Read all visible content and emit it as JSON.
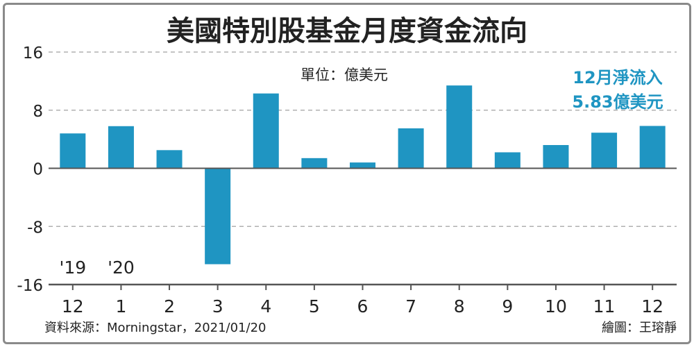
{
  "chart_data": {
    "type": "bar",
    "title": "美國特別股基金月度資金流向",
    "unit_label": "單位：億美元",
    "annotation": [
      "12月淨流入",
      "5.83億美元"
    ],
    "categories": [
      "12",
      "1",
      "2",
      "3",
      "4",
      "5",
      "6",
      "7",
      "8",
      "9",
      "10",
      "11",
      "12"
    ],
    "year_markers": [
      {
        "category_index": 0,
        "label": "'19"
      },
      {
        "category_index": 1,
        "label": "'20"
      }
    ],
    "values": [
      4.8,
      5.8,
      2.5,
      -13.2,
      10.3,
      1.4,
      0.8,
      5.5,
      11.4,
      2.2,
      3.2,
      4.9,
      5.83
    ],
    "ylim": [
      -16,
      16
    ],
    "yticks": [
      "16",
      "8",
      "0",
      "-8",
      "-16"
    ],
    "ytick_values": [
      16,
      8,
      0,
      -8,
      -16
    ],
    "grid": true,
    "source": "資料來源：Morningstar，2021/01/20",
    "credit": "繪圖：王瑢靜",
    "colors": {
      "bar": "#1f95c2",
      "annotation": "#1f95c2",
      "grid": "#b0b0b0",
      "axis": "#555555",
      "text": "#222222"
    }
  }
}
